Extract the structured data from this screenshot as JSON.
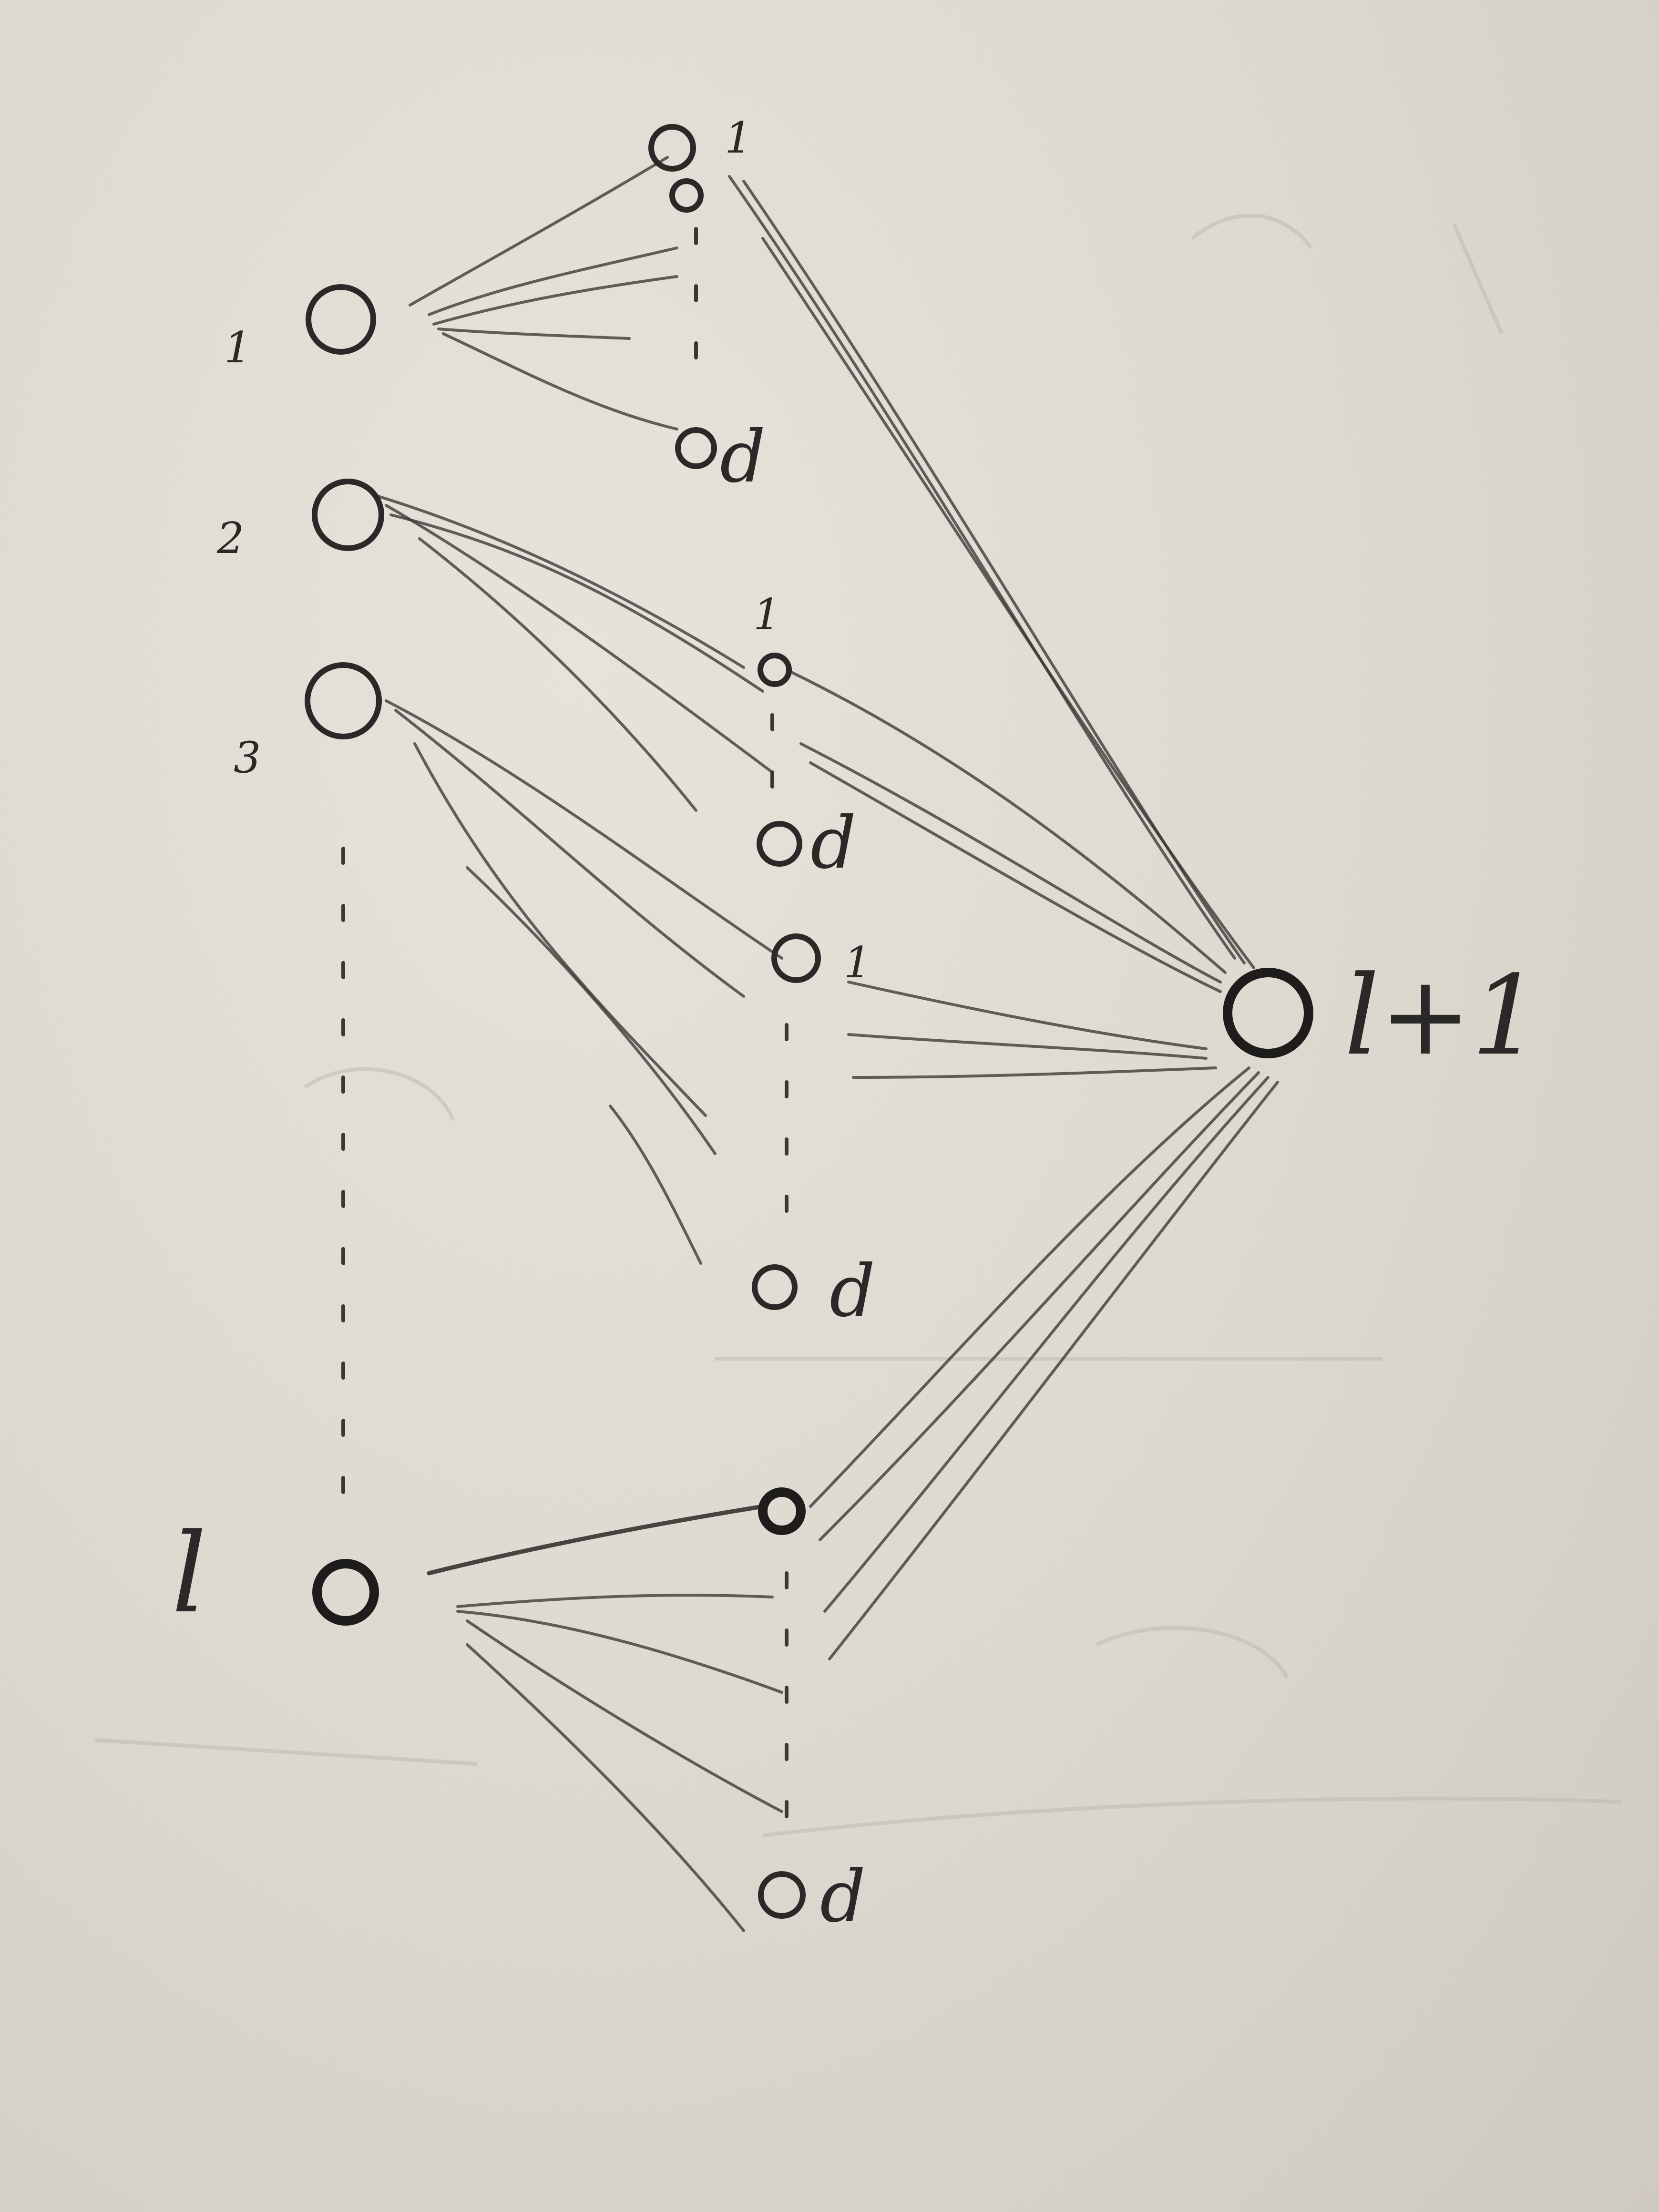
{
  "diagram": {
    "layer_l": {
      "node_labels": [
        "1",
        "2",
        "3",
        "l"
      ]
    },
    "sub_groups": [
      {
        "first": "1",
        "last": "d"
      },
      {
        "first": "1",
        "last": "d"
      },
      {
        "first": "1",
        "last": "d"
      },
      {
        "first": "",
        "last": "d"
      }
    ],
    "output": {
      "label": "l+1"
    }
  }
}
